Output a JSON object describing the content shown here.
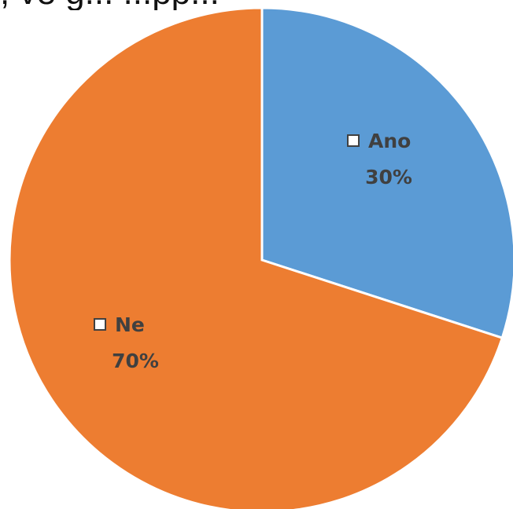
{
  "caption_fragment": ", ve g... ...pp...",
  "chart_data": {
    "type": "pie",
    "categories": [
      "Ano",
      "Ne"
    ],
    "values": [
      30,
      70
    ],
    "value_labels": [
      "30%",
      "70%"
    ],
    "colors": [
      "#5B9BD5",
      "#ED7D31"
    ],
    "label_color": "#404040",
    "start_angle_deg": 0,
    "direction": "clockwise"
  }
}
